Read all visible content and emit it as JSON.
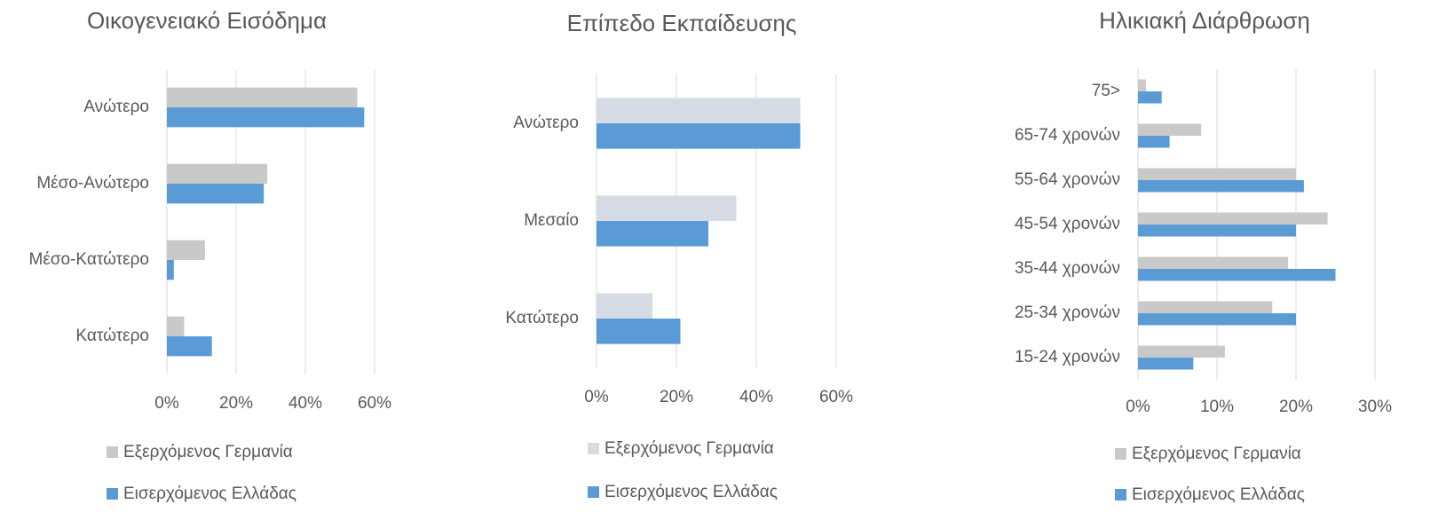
{
  "chart_data": [
    {
      "type": "hbar",
      "title": "Οικογενειακό Εισόδημα",
      "categories": [
        "Ανώτερο",
        "Μέσο-Ανώτερο",
        "Μέσο-Κατώτερο",
        "Κατώτερο"
      ],
      "series": [
        {
          "name": "Εξερχόμενος Γερμανία",
          "color": "#c9c9c9",
          "values": [
            55,
            29,
            11,
            5
          ]
        },
        {
          "name": "Εισερχόμενος Ελλάδας",
          "color": "#5b9bd5",
          "values": [
            57,
            28,
            2,
            13
          ]
        }
      ],
      "xlim": [
        0,
        60
      ],
      "xticks": [
        {
          "value": 0,
          "label": "0%"
        },
        {
          "value": 20,
          "label": "20%"
        },
        {
          "value": 40,
          "label": "40%"
        },
        {
          "value": 60,
          "label": "60%"
        }
      ],
      "grid": true
    },
    {
      "type": "hbar",
      "title": "Επίπεδο Εκπαίδευσης",
      "categories": [
        "Ανώτερο",
        "Μεσαίο",
        "Κατώτερο"
      ],
      "series": [
        {
          "name": "Εξερχόμενος Γερμανία",
          "color": "#d6dce5",
          "values": [
            51,
            35,
            14
          ]
        },
        {
          "name": "Εισερχόμενος Ελλάδας",
          "color": "#5b9bd5",
          "values": [
            51,
            28,
            21
          ]
        }
      ],
      "xlim": [
        0,
        60
      ],
      "xticks": [
        {
          "value": 0,
          "label": "0%"
        },
        {
          "value": 20,
          "label": "20%"
        },
        {
          "value": 40,
          "label": "40%"
        },
        {
          "value": 60,
          "label": "60%"
        }
      ],
      "grid": true
    },
    {
      "type": "hbar",
      "title": "Ηλικιακή Διάρθρωση",
      "categories": [
        "75>",
        "65-74 χρονών",
        "55-64 χρονών",
        "45-54 χρονών",
        "35-44 χρονών",
        "25-34 χρονών",
        "15-24 χρονών"
      ],
      "series": [
        {
          "name": "Εξερχόμενος Γερμανία",
          "color": "#c9c9c9",
          "values": [
            1,
            8,
            20,
            24,
            19,
            17,
            11
          ]
        },
        {
          "name": "Εισερχόμενος Ελλάδας",
          "color": "#5b9bd5",
          "values": [
            3,
            4,
            21,
            20,
            25,
            20,
            7
          ]
        }
      ],
      "xlim": [
        0,
        30
      ],
      "xticks": [
        {
          "value": 0,
          "label": "0%"
        },
        {
          "value": 10,
          "label": "10%"
        },
        {
          "value": 20,
          "label": "20%"
        },
        {
          "value": 30,
          "label": "30%"
        }
      ],
      "grid": true
    }
  ]
}
